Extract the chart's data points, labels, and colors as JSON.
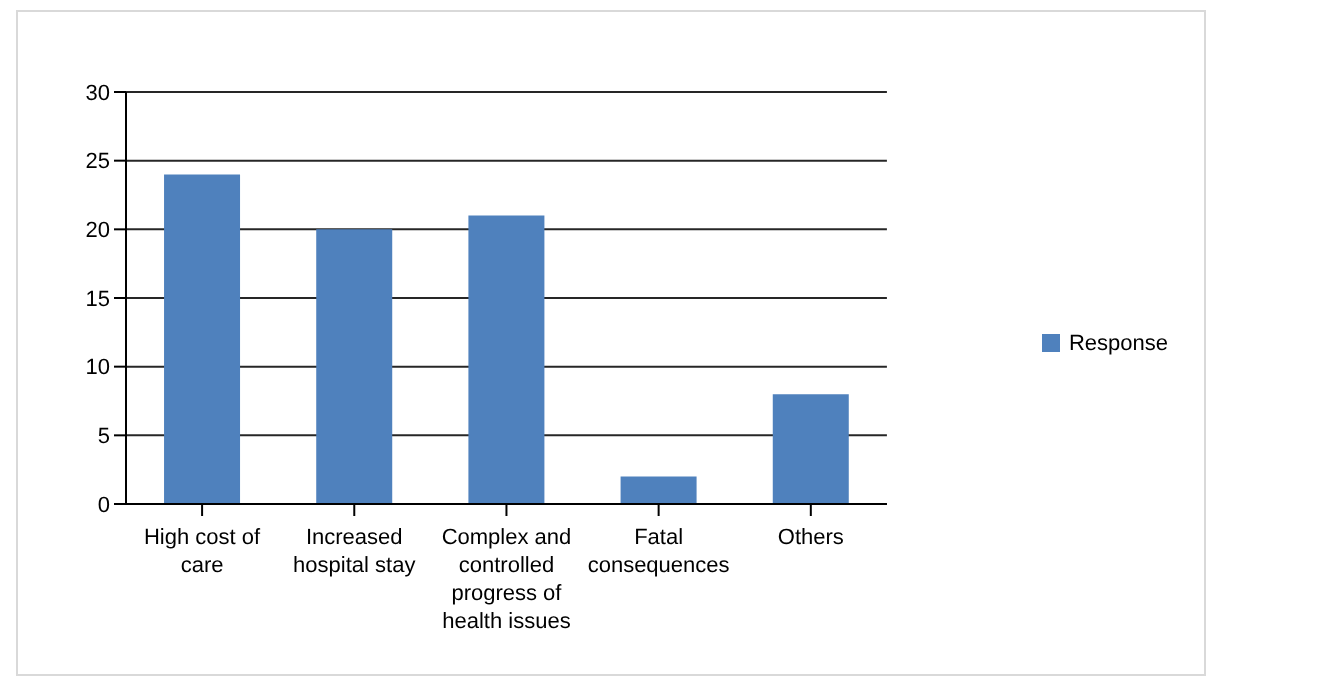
{
  "chart_data": {
    "type": "bar",
    "categories": [
      "High cost of care",
      "Increased hospital stay",
      "Complex and controlled progress of health issues",
      "Fatal consequences",
      "Others"
    ],
    "series": [
      {
        "name": "Response",
        "color": "#4f81bd",
        "values": [
          24,
          20,
          21,
          2,
          8
        ]
      }
    ],
    "ylim": [
      0,
      30
    ],
    "yticks": [
      0,
      5,
      10,
      15,
      20,
      25,
      30
    ],
    "grid": "y",
    "legend": "right"
  }
}
